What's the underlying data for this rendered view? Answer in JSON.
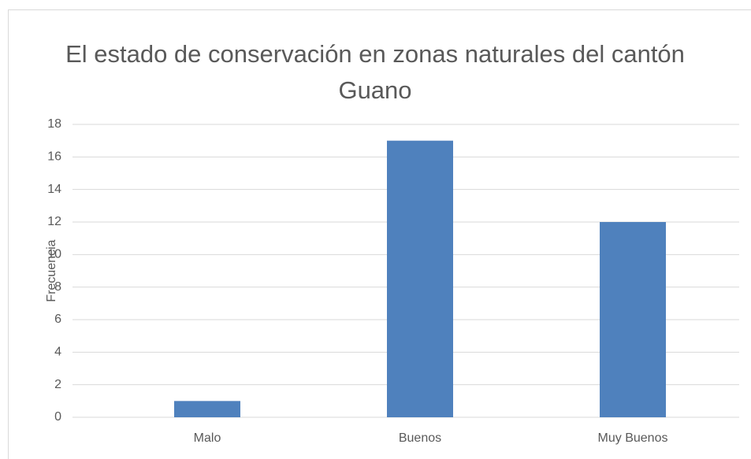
{
  "chart_data": {
    "type": "bar",
    "title": "El estado de conservación en zonas naturales del cantón Guano",
    "y_label": "Frecuencia",
    "categories": [
      "Malo",
      "Buenos",
      "Muy Buenos"
    ],
    "values": [
      1,
      17,
      12
    ],
    "color": "#4f81bd",
    "ylim": [
      0,
      18
    ],
    "yticks": [
      0,
      2,
      4,
      6,
      8,
      10,
      12,
      14,
      16,
      18
    ],
    "grid": true
  }
}
